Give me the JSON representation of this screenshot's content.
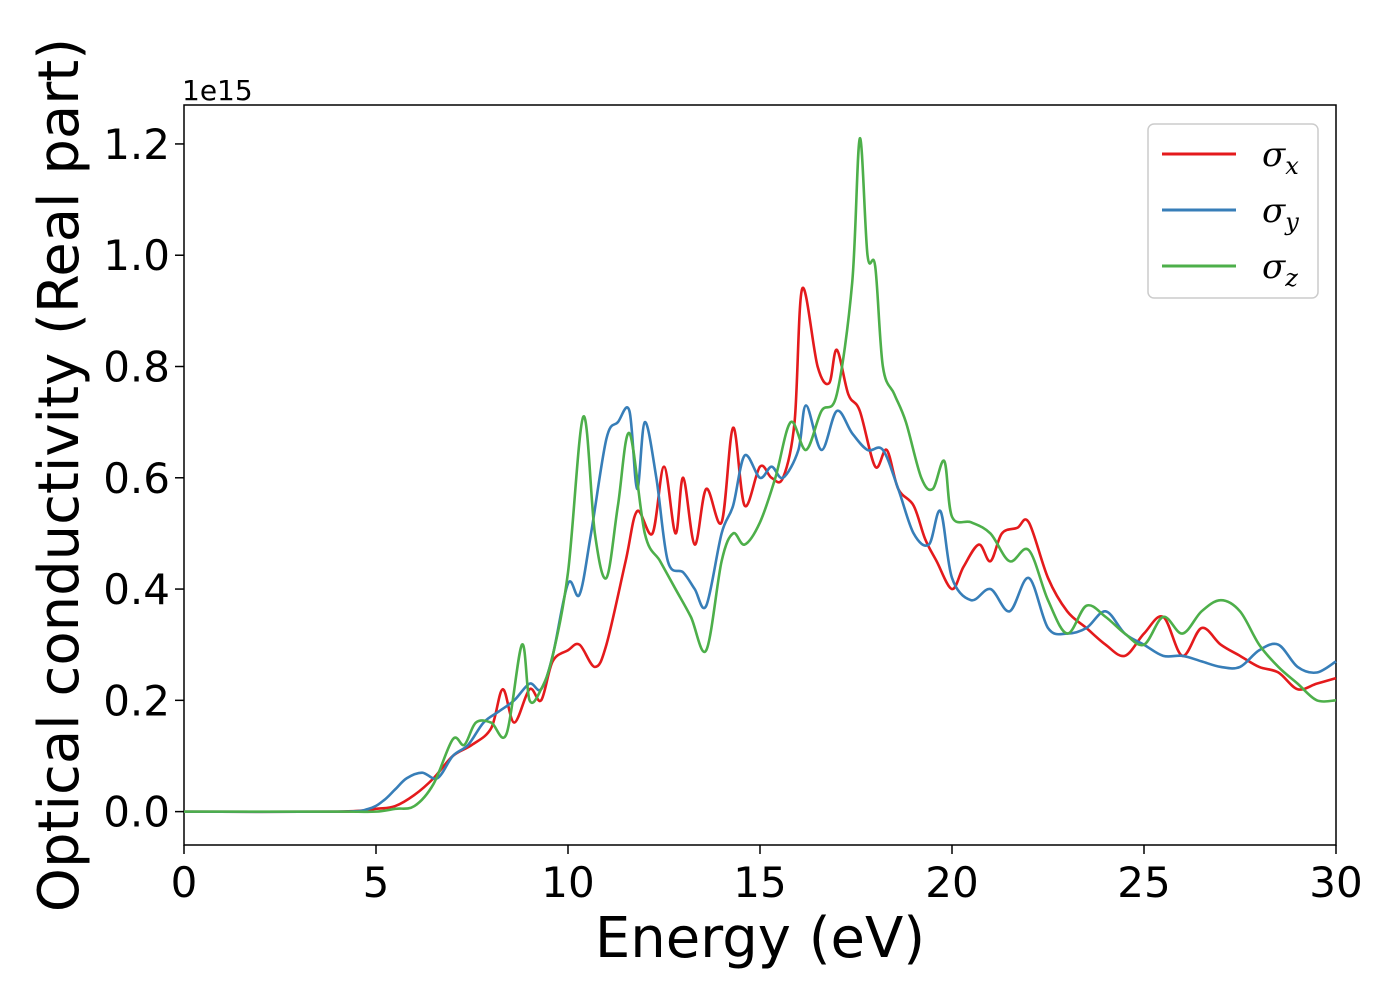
{
  "chart_data": {
    "type": "line",
    "title": "",
    "xlabel": "Energy (eV)",
    "ylabel": "Optical conductivity (Real part)",
    "y_offset_label": "1e15",
    "xlim": [
      0,
      30
    ],
    "ylim": [
      -0.06,
      1.27
    ],
    "xticks": [
      0,
      5,
      10,
      15,
      20,
      25,
      30
    ],
    "xtick_labels": [
      "0",
      "5",
      "10",
      "15",
      "20",
      "25",
      "30"
    ],
    "yticks": [
      0.0,
      0.2,
      0.4,
      0.6,
      0.8,
      1.0,
      1.2
    ],
    "ytick_labels": [
      "0.0",
      "0.2",
      "0.4",
      "0.6",
      "0.8",
      "1.0",
      "1.2"
    ],
    "grid": false,
    "legend_position": "top-right",
    "series": [
      {
        "name": "σx",
        "legend_base": "σ",
        "legend_sub": "x",
        "color": "#e41a1c",
        "x": [
          0,
          4,
          5,
          5.5,
          6.0,
          6.5,
          7.0,
          7.5,
          8.0,
          8.3,
          8.6,
          9.0,
          9.3,
          9.6,
          10.0,
          10.3,
          10.7,
          11.0,
          11.5,
          11.8,
          12.2,
          12.5,
          12.8,
          13.0,
          13.3,
          13.6,
          14.0,
          14.3,
          14.6,
          15.0,
          15.3,
          15.6,
          15.9,
          16.1,
          16.5,
          16.8,
          17.0,
          17.3,
          17.6,
          18.0,
          18.3,
          18.6,
          19.0,
          19.3,
          19.6,
          20.0,
          20.3,
          20.7,
          21.0,
          21.3,
          21.7,
          22.0,
          22.5,
          23.0,
          23.5,
          24.0,
          24.5,
          25.0,
          25.5,
          26.0,
          26.5,
          27.0,
          27.5,
          28.0,
          28.5,
          29.0,
          29.5,
          30.0
        ],
        "values": [
          0.0,
          0.0,
          0.005,
          0.01,
          0.03,
          0.06,
          0.1,
          0.12,
          0.15,
          0.22,
          0.16,
          0.22,
          0.2,
          0.27,
          0.29,
          0.3,
          0.26,
          0.3,
          0.45,
          0.54,
          0.5,
          0.62,
          0.5,
          0.6,
          0.48,
          0.58,
          0.52,
          0.69,
          0.55,
          0.62,
          0.6,
          0.6,
          0.7,
          0.94,
          0.8,
          0.77,
          0.83,
          0.75,
          0.72,
          0.62,
          0.65,
          0.58,
          0.55,
          0.49,
          0.45,
          0.4,
          0.44,
          0.48,
          0.45,
          0.5,
          0.51,
          0.52,
          0.42,
          0.36,
          0.33,
          0.3,
          0.28,
          0.32,
          0.35,
          0.28,
          0.33,
          0.3,
          0.28,
          0.26,
          0.25,
          0.22,
          0.23,
          0.24
        ]
      },
      {
        "name": "σy",
        "legend_base": "σ",
        "legend_sub": "y",
        "color": "#377eb8",
        "x": [
          0,
          4,
          4.8,
          5.2,
          5.5,
          5.8,
          6.2,
          6.6,
          7.0,
          7.4,
          7.8,
          8.2,
          8.6,
          9.0,
          9.3,
          9.6,
          10.0,
          10.3,
          10.6,
          11.0,
          11.3,
          11.6,
          11.8,
          12.0,
          12.3,
          12.6,
          13.0,
          13.3,
          13.6,
          14.0,
          14.3,
          14.6,
          15.0,
          15.3,
          15.6,
          16.0,
          16.2,
          16.6,
          17.0,
          17.4,
          17.8,
          18.2,
          18.6,
          19.0,
          19.4,
          19.7,
          20.0,
          20.5,
          21.0,
          21.5,
          22.0,
          22.5,
          23.0,
          23.5,
          24.0,
          24.5,
          25.0,
          25.5,
          26.0,
          26.5,
          27.0,
          27.5,
          28.0,
          28.5,
          29.0,
          29.5,
          30.0
        ],
        "values": [
          0.0,
          0.0,
          0.005,
          0.02,
          0.04,
          0.06,
          0.07,
          0.06,
          0.1,
          0.12,
          0.16,
          0.18,
          0.2,
          0.23,
          0.22,
          0.28,
          0.41,
          0.39,
          0.5,
          0.67,
          0.7,
          0.72,
          0.58,
          0.7,
          0.6,
          0.45,
          0.43,
          0.4,
          0.37,
          0.5,
          0.55,
          0.64,
          0.6,
          0.62,
          0.6,
          0.65,
          0.73,
          0.65,
          0.72,
          0.68,
          0.65,
          0.65,
          0.58,
          0.5,
          0.48,
          0.54,
          0.42,
          0.38,
          0.4,
          0.36,
          0.42,
          0.33,
          0.32,
          0.33,
          0.36,
          0.32,
          0.3,
          0.28,
          0.28,
          0.27,
          0.26,
          0.26,
          0.29,
          0.3,
          0.26,
          0.25,
          0.27
        ]
      },
      {
        "name": "σz",
        "legend_base": "σ",
        "legend_sub": "z",
        "color": "#4daf4a",
        "x": [
          0,
          4,
          5,
          5.5,
          6.0,
          6.5,
          7.0,
          7.3,
          7.6,
          8.0,
          8.4,
          8.8,
          9.0,
          9.3,
          9.6,
          10.0,
          10.4,
          10.7,
          11.0,
          11.3,
          11.6,
          12.0,
          12.4,
          12.8,
          13.2,
          13.6,
          14.0,
          14.3,
          14.6,
          15.0,
          15.4,
          15.8,
          16.2,
          16.6,
          17.0,
          17.4,
          17.6,
          17.8,
          18.0,
          18.2,
          18.5,
          18.8,
          19.2,
          19.5,
          19.8,
          20.0,
          20.5,
          21.0,
          21.5,
          22.0,
          22.5,
          23.0,
          23.5,
          24.0,
          24.5,
          25.0,
          25.5,
          26.0,
          26.5,
          27.0,
          27.5,
          28.0,
          28.5,
          29.0,
          29.5,
          30.0
        ],
        "values": [
          0.0,
          0.0,
          0.0,
          0.005,
          0.01,
          0.05,
          0.13,
          0.12,
          0.16,
          0.16,
          0.14,
          0.3,
          0.2,
          0.22,
          0.28,
          0.43,
          0.71,
          0.5,
          0.42,
          0.55,
          0.68,
          0.5,
          0.45,
          0.4,
          0.35,
          0.29,
          0.45,
          0.5,
          0.48,
          0.52,
          0.6,
          0.7,
          0.65,
          0.72,
          0.75,
          0.95,
          1.21,
          1.0,
          0.98,
          0.8,
          0.75,
          0.7,
          0.6,
          0.58,
          0.63,
          0.53,
          0.52,
          0.5,
          0.45,
          0.47,
          0.38,
          0.32,
          0.37,
          0.35,
          0.32,
          0.3,
          0.35,
          0.32,
          0.36,
          0.38,
          0.36,
          0.3,
          0.26,
          0.23,
          0.2,
          0.2
        ]
      }
    ]
  }
}
